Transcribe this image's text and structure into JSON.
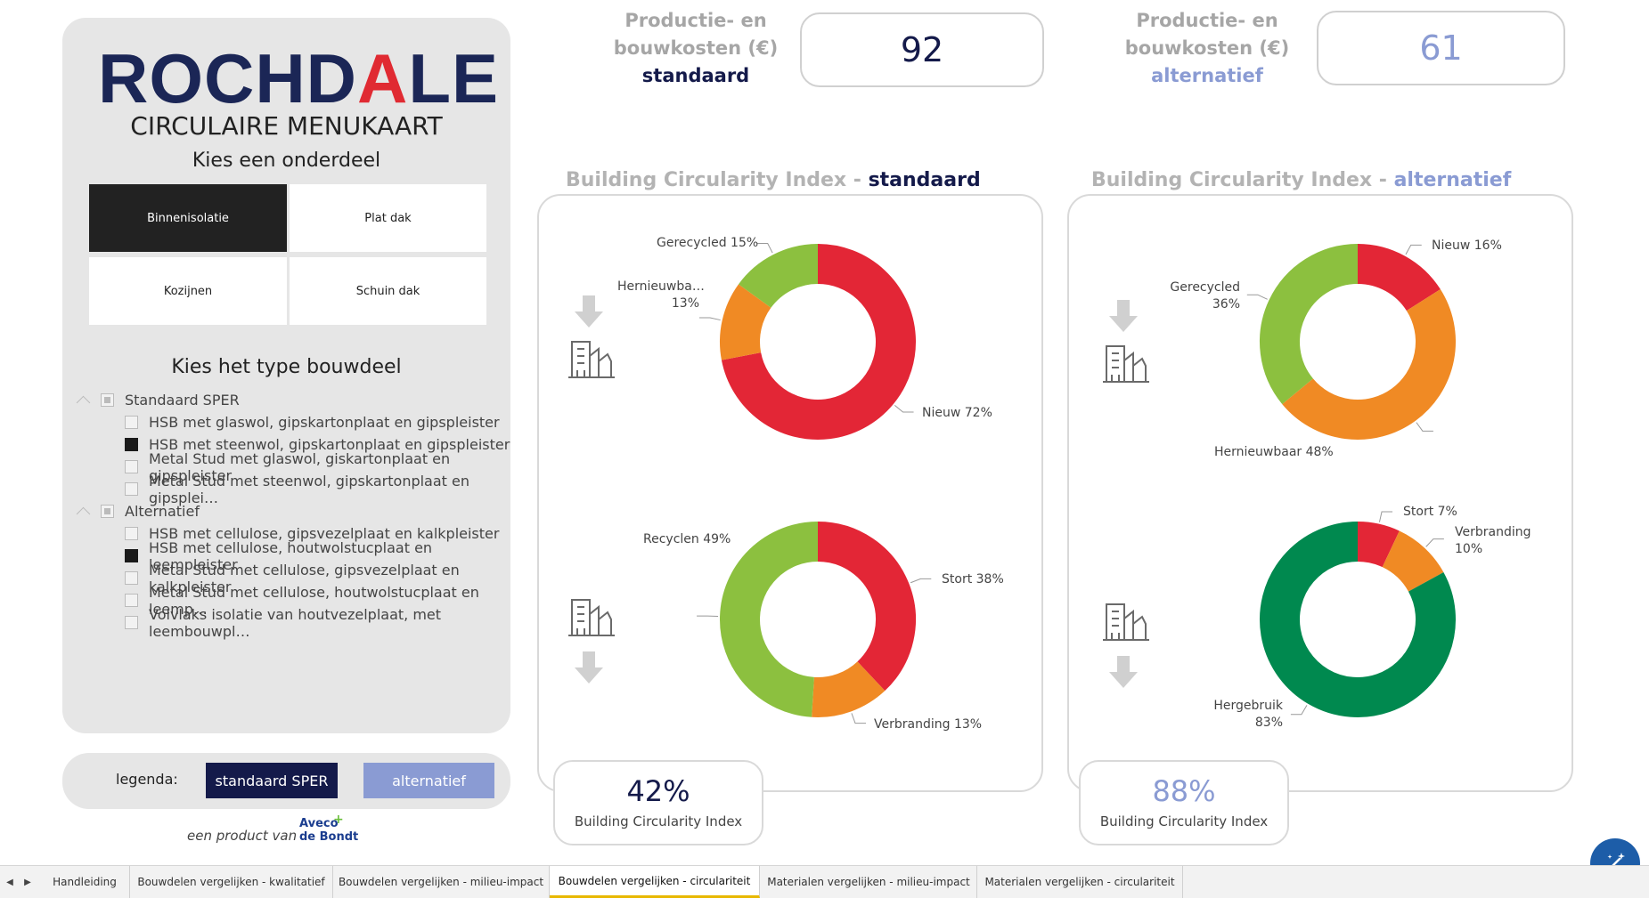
{
  "brand": {
    "logo_pre": "ROCHD",
    "logo_accent": "A",
    "logo_post": "LE",
    "subtitle": "CIRCULAIRE MENUKAART"
  },
  "onderdeel": {
    "heading": "Kies een onderdeel",
    "tiles": [
      {
        "label": "Binnenisolatie",
        "selected": true
      },
      {
        "label": "Plat dak",
        "selected": false
      },
      {
        "label": "Kozijnen",
        "selected": false
      },
      {
        "label": "Schuin dak",
        "selected": false
      }
    ]
  },
  "bouwdeel": {
    "heading": "Kies het type bouwdeel",
    "groups": [
      {
        "label": "Standaard SPER",
        "items": [
          {
            "label": "HSB met glaswol, gipskartonplaat en gipspleister",
            "checked": false
          },
          {
            "label": "HSB met steenwol, gipskartonplaat en gipspleister",
            "checked": true
          },
          {
            "label": "Metal Stud met glaswol, giskartonplaat en gipspleister",
            "checked": false
          },
          {
            "label": "Metal Stud met steenwol, gipskartonplaat en gipsplei…",
            "checked": false
          }
        ]
      },
      {
        "label": "Alternatief",
        "items": [
          {
            "label": "HSB met cellulose, gipsvezelplaat en kalkpleister",
            "checked": false
          },
          {
            "label": "HSB met cellulose, houtwolstucplaat en leempleister",
            "checked": true
          },
          {
            "label": "Metal Stud met cellulose, gipsvezelplaat en kalkpleister",
            "checked": false
          },
          {
            "label": "Metal Stud met cellulose, houtwolstucplaat en leemp…",
            "checked": false
          },
          {
            "label": "Volvlaks isolatie van houtvezelplaat, met leembouwpl…",
            "checked": false
          }
        ]
      }
    ]
  },
  "legend": {
    "label": "legenda:",
    "standaard": "standaard SPER",
    "alternatief": "alternatief",
    "colors": {
      "standaard": "#141a4a",
      "alternatief": "#8a9bd3"
    }
  },
  "footer": {
    "product_text": "een product van",
    "company_line1": "Aveco",
    "company_line2": "de Bondt"
  },
  "kpi": {
    "standaard": {
      "label_line1": "Productie- en",
      "label_line2": "bouwkosten (€)",
      "label_line3": "standaard",
      "value": "92"
    },
    "alternatief": {
      "label_line1": "Productie- en",
      "label_line2": "bouwkosten (€)",
      "label_line3": "alternatief",
      "value": "61"
    }
  },
  "panels": {
    "standaard": {
      "title_prefix": "Building Circularity Index - ",
      "title_suffix": "standaard",
      "bci_value": "42%",
      "bci_label": "Building Circularity Index"
    },
    "alternatief": {
      "title_prefix": "Building Circularity Index - ",
      "title_suffix": "alternatief",
      "bci_value": "88%",
      "bci_label": "Building Circularity Index"
    }
  },
  "chart_data": [
    {
      "type": "pie",
      "donut": true,
      "panel": "standaard",
      "position": "input",
      "slices": [
        {
          "label": "Nieuw",
          "value": 72,
          "display": "Nieuw 72%",
          "color": "#e32636"
        },
        {
          "label": "Hernieuwbaar",
          "value": 13,
          "display_line1": "Hernieuwba…",
          "display_line2": "13%",
          "color": "#f08a24"
        },
        {
          "label": "Gerecycled",
          "value": 15,
          "display": "Gerecycled 15%",
          "color": "#8cc03f"
        }
      ]
    },
    {
      "type": "pie",
      "donut": true,
      "panel": "standaard",
      "position": "output",
      "slices": [
        {
          "label": "Stort",
          "value": 38,
          "display": "Stort 38%",
          "color": "#e32636"
        },
        {
          "label": "Verbranding",
          "value": 13,
          "display": "Verbranding 13%",
          "color": "#f08a24"
        },
        {
          "label": "Recyclen",
          "value": 49,
          "display": "Recyclen 49%",
          "color": "#8cc03f"
        }
      ]
    },
    {
      "type": "pie",
      "donut": true,
      "panel": "alternatief",
      "position": "input",
      "slices": [
        {
          "label": "Nieuw",
          "value": 16,
          "display": "Nieuw 16%",
          "color": "#e32636"
        },
        {
          "label": "Hernieuwbaar",
          "value": 48,
          "display": "Hernieuwbaar 48%",
          "color": "#f08a24"
        },
        {
          "label": "Gerecycled",
          "value": 36,
          "display_line1": "Gerecycled",
          "display_line2": "36%",
          "color": "#8cc03f"
        }
      ]
    },
    {
      "type": "pie",
      "donut": true,
      "panel": "alternatief",
      "position": "output",
      "slices": [
        {
          "label": "Stort",
          "value": 7,
          "display": "Stort 7%",
          "color": "#e32636"
        },
        {
          "label": "Verbranding",
          "value": 10,
          "display_line1": "Verbranding",
          "display_line2": "10%",
          "color": "#f08a24"
        },
        {
          "label": "Hergebruik",
          "value": 83,
          "display_line1": "Hergebruik",
          "display_line2": "83%",
          "color": "#00894f"
        }
      ]
    }
  ],
  "sheet_tabs": [
    {
      "label": "Handleiding",
      "active": false
    },
    {
      "label": "Bouwdelen vergelijken - kwalitatief",
      "active": false
    },
    {
      "label": "Bouwdelen vergelijken - milieu-impact",
      "active": false
    },
    {
      "label": "Bouwdelen vergelijken - circulariteit",
      "active": true
    },
    {
      "label": "Materialen vergelijken - milieu-impact",
      "active": false
    },
    {
      "label": "Materialen vergelijken - circulariteit",
      "active": false
    }
  ],
  "icons": {
    "building": "building-icon",
    "arrow_down": "arrow-down-icon",
    "magic": "magic-wand-icon"
  }
}
